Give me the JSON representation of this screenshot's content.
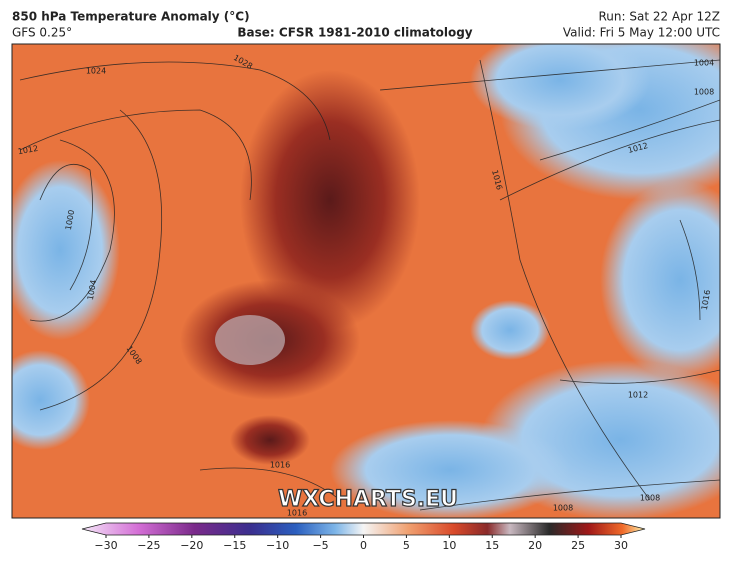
{
  "header": {
    "title": "850 hPa Temperature Anomaly (°C)",
    "model": "GFS 0.25°",
    "base": "Base: CFSR 1981-2010 climatology",
    "run": "Run: Sat 22 Apr 12Z",
    "valid": "Valid: Fri 5 May 12:00 UTC"
  },
  "map": {
    "isobar_labels": [
      "1024",
      "1028",
      "1012",
      "1000",
      "1004",
      "1008",
      "1016",
      "1004",
      "1008",
      "1012",
      "1016",
      "1012",
      "1016",
      "1008",
      "1008",
      "1016"
    ],
    "watermark": "WXCHARTS.EU"
  },
  "colorbar": {
    "ticks": [
      {
        "value": -30,
        "label": "−30"
      },
      {
        "value": -25,
        "label": "−25"
      },
      {
        "value": -20,
        "label": "−20"
      },
      {
        "value": -15,
        "label": "−15"
      },
      {
        "value": -10,
        "label": "−10"
      },
      {
        "value": -5,
        "label": "−5"
      },
      0,
      5,
      10,
      15,
      20,
      25,
      30
    ]
  }
}
